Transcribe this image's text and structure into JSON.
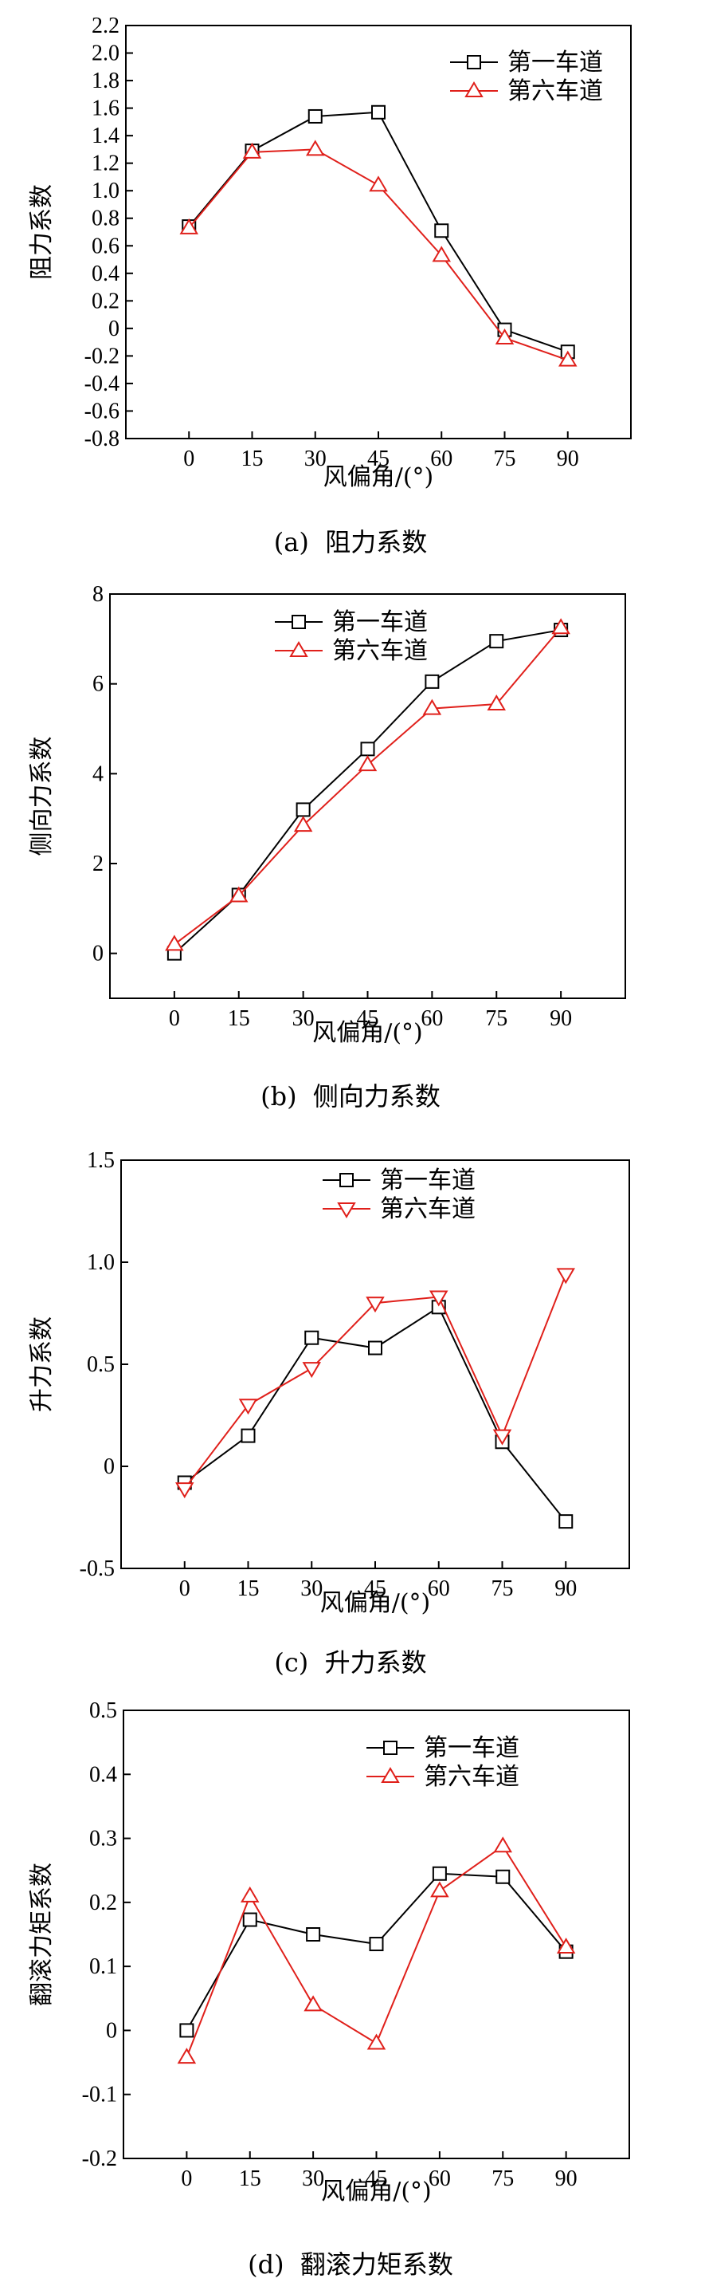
{
  "chart_data": [
    {
      "type": "line",
      "panel_label": "(a)",
      "title": "阻力系数",
      "xlabel": "风偏角/(°)",
      "ylabel": "阻力系数",
      "x": [
        0,
        15,
        30,
        45,
        60,
        75,
        90
      ],
      "x_ticks": [
        "0",
        "15",
        "30",
        "45",
        "60",
        "75",
        "90"
      ],
      "ylim": [
        -0.8,
        2.2
      ],
      "y_ticks": [
        "-0.8",
        "-0.6",
        "-0.4",
        "-0.2",
        "0",
        "0.2",
        "0.4",
        "0.6",
        "0.8",
        "1.0",
        "1.2",
        "1.4",
        "1.6",
        "1.8",
        "2.0",
        "2.2"
      ],
      "legend_position": "top-right",
      "series": [
        {
          "name": "第一车道",
          "color": "#000000",
          "marker": "square",
          "values": [
            0.74,
            1.29,
            1.54,
            1.57,
            0.71,
            -0.01,
            -0.17
          ]
        },
        {
          "name": "第六车道",
          "color": "#e0201b",
          "marker": "triangle-up",
          "values": [
            0.73,
            1.28,
            1.3,
            1.04,
            0.53,
            -0.07,
            -0.23
          ]
        }
      ]
    },
    {
      "type": "line",
      "panel_label": "(b)",
      "title": "侧向力系数",
      "xlabel": "风偏角/(°)",
      "ylabel": "侧向力系数",
      "x": [
        0,
        15,
        30,
        45,
        60,
        75,
        90
      ],
      "x_ticks": [
        "0",
        "15",
        "30",
        "45",
        "60",
        "75",
        "90"
      ],
      "ylim": [
        -1,
        8
      ],
      "y_ticks": [
        "0",
        "2",
        "4",
        "6",
        "8"
      ],
      "legend_position": "top-center",
      "series": [
        {
          "name": "第一车道",
          "color": "#000000",
          "marker": "square",
          "values": [
            0.0,
            1.3,
            3.2,
            4.55,
            6.05,
            6.95,
            7.2
          ]
        },
        {
          "name": "第六车道",
          "color": "#e0201b",
          "marker": "triangle-up",
          "values": [
            0.2,
            1.28,
            2.85,
            4.2,
            5.45,
            5.55,
            7.25
          ]
        }
      ]
    },
    {
      "type": "line",
      "panel_label": "(c)",
      "title": "升力系数",
      "xlabel": "风偏角/(°)",
      "ylabel": "升力系数",
      "x": [
        0,
        15,
        30,
        45,
        60,
        75,
        90
      ],
      "x_ticks": [
        "0",
        "15",
        "30",
        "45",
        "60",
        "75",
        "90"
      ],
      "ylim": [
        -0.5,
        1.5
      ],
      "y_ticks": [
        "-0.5",
        "0",
        "0.5",
        "1.0",
        "1.5"
      ],
      "legend_position": "top-center",
      "series": [
        {
          "name": "第一车道",
          "color": "#000000",
          "marker": "square",
          "values": [
            -0.08,
            0.15,
            0.63,
            0.58,
            0.78,
            0.12,
            -0.27
          ]
        },
        {
          "name": "第六车道",
          "color": "#e0201b",
          "marker": "triangle-down",
          "values": [
            -0.11,
            0.3,
            0.48,
            0.8,
            0.83,
            0.15,
            0.94
          ]
        }
      ]
    },
    {
      "type": "line",
      "panel_label": "(d)",
      "title": "翻滚力矩系数",
      "xlabel": "风偏角/(°)",
      "ylabel": "翻滚力矩系数",
      "x": [
        0,
        15,
        30,
        45,
        60,
        75,
        90
      ],
      "x_ticks": [
        "0",
        "15",
        "30",
        "45",
        "60",
        "75",
        "90"
      ],
      "ylim": [
        -0.2,
        0.5
      ],
      "y_ticks": [
        "-0.2",
        "-0.1",
        "0",
        "0.1",
        "0.2",
        "0.3",
        "0.4",
        "0.5"
      ],
      "legend_position": "top-center",
      "series": [
        {
          "name": "第一车道",
          "color": "#000000",
          "marker": "square",
          "values": [
            0.0,
            0.173,
            0.15,
            0.135,
            0.245,
            0.24,
            0.123
          ]
        },
        {
          "name": "第六车道",
          "color": "#e0201b",
          "marker": "triangle-up",
          "values": [
            -0.042,
            0.21,
            0.04,
            -0.02,
            0.218,
            0.288,
            0.13
          ]
        }
      ]
    }
  ]
}
